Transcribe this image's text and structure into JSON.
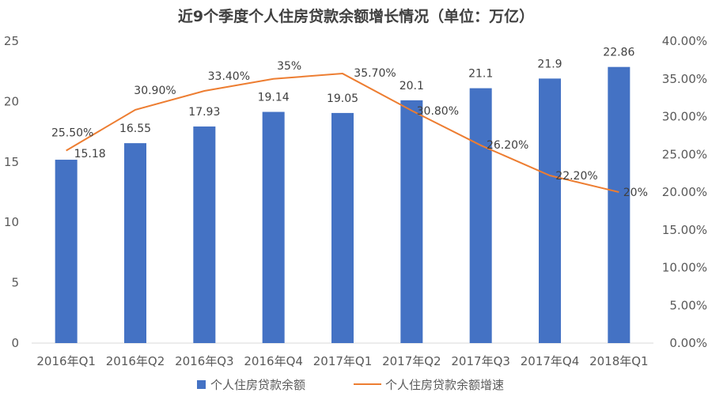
{
  "chart_data": {
    "type": "bar+line",
    "title": "近9个季度个人住房贷款余额增长情况（单位：万亿）",
    "categories": [
      "2016年Q1",
      "2016年Q2",
      "2016年Q3",
      "2016年Q4",
      "2017年Q1",
      "2017年Q2",
      "2017年Q3",
      "2017年Q4",
      "2018年Q1"
    ],
    "series": [
      {
        "name": "个人住房贷款余额",
        "type": "bar",
        "axis": "left",
        "color": "#4472C4",
        "values": [
          15.18,
          16.55,
          17.93,
          19.14,
          19.05,
          20.1,
          21.1,
          21.9,
          22.86
        ],
        "labels": [
          "15.18",
          "16.55",
          "17.93",
          "19.14",
          "19.05",
          "20.1",
          "21.1",
          "21.9",
          "22.86"
        ]
      },
      {
        "name": "个人住房贷款余额增速",
        "type": "line",
        "axis": "right",
        "color": "#ED7D31",
        "values": [
          25.5,
          30.9,
          33.4,
          35,
          35.7,
          30.8,
          26.2,
          22.2,
          20
        ],
        "labels": [
          "25.50%",
          "30.90%",
          "33.40%",
          "35%",
          "35.70%",
          "30.80%",
          "26.20%",
          "22.20%",
          "20%"
        ]
      }
    ],
    "y_left": {
      "range": [
        0,
        25
      ],
      "ticks": [
        "0",
        "5",
        "10",
        "15",
        "20",
        "25"
      ]
    },
    "y_right": {
      "range": [
        0,
        40
      ],
      "ticks": [
        "0.00%",
        "5.00%",
        "10.00%",
        "15.00%",
        "20.00%",
        "25.00%",
        "30.00%",
        "35.00%",
        "40.00%"
      ]
    },
    "grid": false,
    "legend": "bottom"
  }
}
